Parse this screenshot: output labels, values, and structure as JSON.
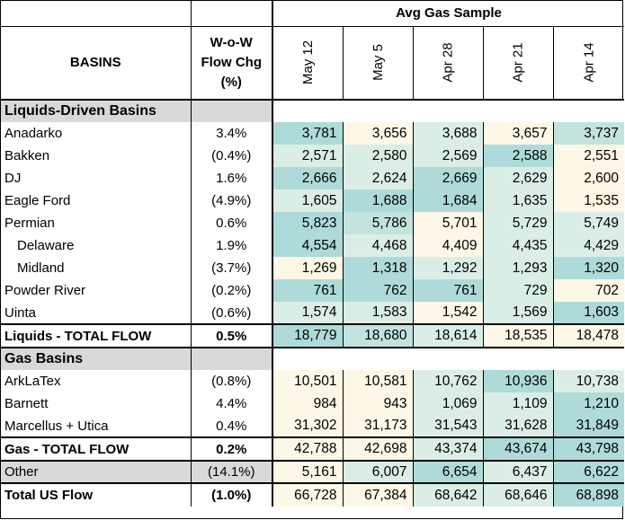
{
  "header": {
    "group_title": "Avg Gas Sample",
    "basins_label": "BASINS",
    "chg_line1": "W-o-W",
    "chg_line2": "Flow Chg",
    "chg_line3": "(%)",
    "dates": [
      "May 12",
      "May 5",
      "Apr 28",
      "Apr 21",
      "Apr 14"
    ]
  },
  "colors": {
    "teal_dark": "#aedbd9",
    "teal_mid": "#c3e3df",
    "teal_light": "#dbeee6",
    "cream": "#fdf7e6",
    "gray": "#d9d9d9"
  },
  "sections": {
    "liquids": {
      "label": "Liquids-Driven Basins"
    },
    "gas": {
      "label": "Gas Basins"
    }
  },
  "rows": [
    {
      "name": "Anadarko",
      "chg": "3.4%",
      "values": [
        "3,781",
        "3,656",
        "3,688",
        "3,657",
        "3,737"
      ],
      "shades": [
        "teal_dark",
        "cream",
        "teal_light",
        "cream",
        "teal_mid"
      ]
    },
    {
      "name": "Bakken",
      "chg": "(0.4%)",
      "values": [
        "2,571",
        "2,580",
        "2,569",
        "2,588",
        "2,551"
      ],
      "shades": [
        "teal_light",
        "teal_light",
        "teal_light",
        "teal_dark",
        "cream"
      ]
    },
    {
      "name": "DJ",
      "chg": "1.6%",
      "values": [
        "2,666",
        "2,624",
        "2,669",
        "2,629",
        "2,600"
      ],
      "shades": [
        "teal_dark",
        "teal_light",
        "teal_dark",
        "teal_light",
        "cream"
      ]
    },
    {
      "name": "Eagle Ford",
      "chg": "(4.9%)",
      "values": [
        "1,605",
        "1,688",
        "1,684",
        "1,635",
        "1,535"
      ],
      "shades": [
        "teal_light",
        "teal_dark",
        "teal_dark",
        "teal_light",
        "cream"
      ]
    },
    {
      "name": "Permian",
      "chg": "0.6%",
      "values": [
        "5,823",
        "5,786",
        "5,701",
        "5,729",
        "5,749"
      ],
      "shades": [
        "teal_dark",
        "teal_mid",
        "cream",
        "teal_light",
        "teal_light"
      ]
    },
    {
      "name": "Delaware",
      "chg": "1.9%",
      "indent": true,
      "values": [
        "4,554",
        "4,468",
        "4,409",
        "4,435",
        "4,429"
      ],
      "shades": [
        "teal_dark",
        "teal_light",
        "cream",
        "teal_light",
        "teal_light"
      ]
    },
    {
      "name": "Midland",
      "chg": "(3.7%)",
      "indent": true,
      "values": [
        "1,269",
        "1,318",
        "1,292",
        "1,293",
        "1,320"
      ],
      "shades": [
        "cream",
        "teal_dark",
        "teal_light",
        "teal_light",
        "teal_dark"
      ]
    },
    {
      "name": "Powder River",
      "chg": "(0.2%)",
      "values": [
        "761",
        "762",
        "761",
        "729",
        "702"
      ],
      "shades": [
        "teal_dark",
        "teal_dark",
        "teal_dark",
        "teal_light",
        "cream"
      ]
    },
    {
      "name": "Uinta",
      "chg": "(0.6%)",
      "values": [
        "1,574",
        "1,583",
        "1,542",
        "1,569",
        "1,603"
      ],
      "shades": [
        "teal_light",
        "teal_light",
        "cream",
        "teal_light",
        "teal_dark"
      ]
    }
  ],
  "liquids_total": {
    "name": "Liquids - TOTAL FLOW",
    "chg": "0.5%",
    "values": [
      "18,779",
      "18,680",
      "18,614",
      "18,535",
      "18,478"
    ],
    "shades": [
      "teal_dark",
      "teal_mid",
      "teal_light",
      "cream",
      "cream"
    ]
  },
  "gas_rows": [
    {
      "name": "ArkLaTex",
      "chg": "(0.8%)",
      "values": [
        "10,501",
        "10,581",
        "10,762",
        "10,936",
        "10,738"
      ],
      "shades": [
        "cream",
        "cream",
        "teal_light",
        "teal_dark",
        "teal_light"
      ]
    },
    {
      "name": "Barnett",
      "chg": "4.4%",
      "values": [
        "984",
        "943",
        "1,069",
        "1,109",
        "1,210"
      ],
      "shades": [
        "cream",
        "cream",
        "teal_light",
        "teal_light",
        "teal_dark"
      ]
    },
    {
      "name": "Marcellus + Utica",
      "chg": "0.4%",
      "values": [
        "31,302",
        "31,173",
        "31,543",
        "31,628",
        "31,849"
      ],
      "shades": [
        "cream",
        "cream",
        "teal_light",
        "teal_light",
        "teal_dark"
      ]
    }
  ],
  "gas_total": {
    "name": "Gas - TOTAL FLOW",
    "chg": "0.2%",
    "values": [
      "42,788",
      "42,698",
      "43,374",
      "43,674",
      "43,798"
    ],
    "shades": [
      "cream",
      "cream",
      "teal_light",
      "teal_dark",
      "teal_dark"
    ]
  },
  "other": {
    "name": "Other",
    "chg": "(14.1%)",
    "values": [
      "5,161",
      "6,007",
      "6,654",
      "6,437",
      "6,622"
    ],
    "shades": [
      "cream",
      "teal_light",
      "teal_dark",
      "teal_light",
      "teal_dark"
    ]
  },
  "us_total": {
    "name": "Total US Flow",
    "chg": "(1.0%)",
    "values": [
      "66,728",
      "67,384",
      "68,642",
      "68,646",
      "68,898"
    ],
    "shades": [
      "cream",
      "cream",
      "teal_light",
      "teal_light",
      "teal_dark"
    ]
  }
}
